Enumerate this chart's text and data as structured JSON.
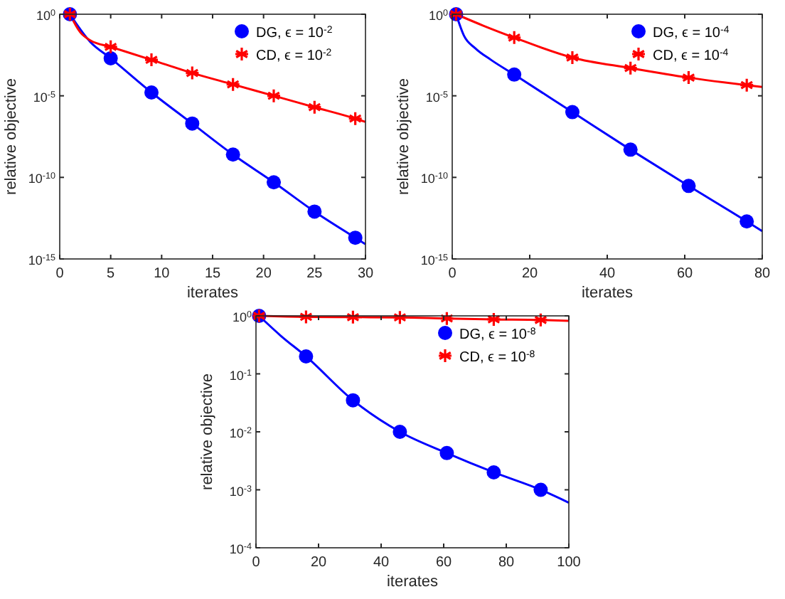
{
  "chart_data": [
    {
      "type": "line",
      "xlabel": "iterates",
      "ylabel": "relative objective",
      "log": "y",
      "xlim": [
        0,
        30
      ],
      "xticks": [
        0,
        5,
        10,
        15,
        20,
        25,
        30
      ],
      "ylim": [
        1e-15,
        1
      ],
      "yticks": [
        {
          "value": 1e-15,
          "label": "10$^{-15}$"
        },
        {
          "value": 1e-10,
          "label": "10$^{-10}$"
        },
        {
          "value": 1e-05,
          "label": "10$^{-5}$"
        },
        {
          "value": 1,
          "label": "10$^{0}$"
        }
      ],
      "legend": "top right",
      "series": [
        {
          "color": "#0000ff",
          "x": [
            1,
            3,
            5,
            9,
            13,
            17,
            21,
            25,
            29,
            30
          ],
          "values": [
            1,
            0.02,
            0.002,
            1.6e-05,
            2e-07,
            2.5e-09,
            5e-11,
            8e-13,
            2e-14,
            8e-15
          ]
        },
        {
          "color": "#ff0000",
          "x": [
            1,
            2,
            3,
            5,
            9,
            13,
            17,
            21,
            25,
            29,
            30
          ],
          "values": [
            1,
            0.08,
            0.025,
            0.01,
            0.0016,
            0.00025,
            5e-05,
            1e-05,
            2e-06,
            4e-07,
            2.5e-07
          ]
        },
        {
          "type": "scatter",
          "name": "DG, ϵ = 10$^{-2}$",
          "color": "#0000ff",
          "marker": "circle",
          "x": [
            1,
            5,
            9,
            13,
            17,
            21,
            25,
            29
          ],
          "values": [
            1,
            0.002,
            1.6e-05,
            2e-07,
            2.5e-09,
            5e-11,
            8e-13,
            2e-14
          ]
        },
        {
          "type": "scatter",
          "name": "CD, ϵ = 10$^{-2}$",
          "color": "#ff0000",
          "marker": "cross",
          "x": [
            1,
            5,
            9,
            13,
            17,
            21,
            25,
            29
          ],
          "values": [
            1,
            0.01,
            0.0016,
            0.00025,
            5e-05,
            1e-05,
            2e-06,
            4e-07
          ]
        }
      ]
    },
    {
      "type": "line",
      "xlabel": "iterates",
      "ylabel": "relative objective",
      "log": "y",
      "xlim": [
        0,
        80
      ],
      "xticks": [
        0,
        20,
        40,
        60,
        80
      ],
      "ylim": [
        1e-15,
        1
      ],
      "yticks": [
        {
          "value": 1e-15,
          "label": "10$^{-15}$"
        },
        {
          "value": 1e-10,
          "label": "10$^{-10}$"
        },
        {
          "value": 1e-05,
          "label": "10$^{-5}$"
        },
        {
          "value": 1,
          "label": "10$^{0}$"
        }
      ],
      "legend": "top right",
      "series": [
        {
          "color": "#0000ff",
          "x": [
            1,
            3,
            6,
            10,
            16,
            31,
            46,
            61,
            76,
            80
          ],
          "values": [
            1,
            0.05,
            0.008,
            0.0016,
            0.0002,
            1e-06,
            5e-09,
            3e-11,
            2e-13,
            5e-14
          ]
        },
        {
          "color": "#ff0000",
          "x": [
            1,
            8,
            16,
            31,
            46,
            61,
            76,
            80
          ],
          "values": [
            1,
            0.2,
            0.037,
            0.0022,
            0.0005,
            0.00013,
            4.5e-05,
            3.5e-05
          ]
        },
        {
          "type": "scatter",
          "name": "DG, ϵ = 10$^{-4}$",
          "color": "#0000ff",
          "marker": "circle",
          "x": [
            1,
            16,
            31,
            46,
            61,
            76
          ],
          "values": [
            1,
            0.0002,
            1e-06,
            5e-09,
            3e-11,
            2e-13
          ]
        },
        {
          "type": "scatter",
          "name": "CD, ϵ = 10$^{-4}$",
          "color": "#ff0000",
          "marker": "cross",
          "x": [
            1,
            16,
            31,
            46,
            61,
            76
          ],
          "values": [
            1,
            0.037,
            0.0022,
            0.0005,
            0.00013,
            4.5e-05
          ]
        }
      ]
    },
    {
      "type": "line",
      "xlabel": "iterates",
      "ylabel": "relative objective",
      "log": "y",
      "xlim": [
        0,
        100
      ],
      "xticks": [
        0,
        20,
        40,
        60,
        80,
        100
      ],
      "ylim": [
        0.0001,
        1
      ],
      "yticks": [
        {
          "value": 0.0001,
          "label": "10$^{-4}$"
        },
        {
          "value": 0.001,
          "label": "10$^{-3}$"
        },
        {
          "value": 0.01,
          "label": "10$^{-2}$"
        },
        {
          "value": 0.1,
          "label": "10$^{-1}$"
        },
        {
          "value": 1,
          "label": "10$^{0}$"
        }
      ],
      "legend": "top right",
      "series": [
        {
          "color": "#0000ff",
          "x": [
            1,
            8,
            16,
            31,
            46,
            61,
            76,
            91,
            100
          ],
          "values": [
            1,
            0.45,
            0.2,
            0.035,
            0.01,
            0.0043,
            0.002,
            0.001,
            0.0006
          ]
        },
        {
          "color": "#ff0000",
          "x": [
            1,
            16,
            31,
            46,
            61,
            76,
            91,
            100
          ],
          "values": [
            1,
            0.96,
            0.95,
            0.94,
            0.9,
            0.87,
            0.85,
            0.82
          ]
        },
        {
          "type": "scatter",
          "name": "DG, ϵ = 10$^{-8}$",
          "color": "#0000ff",
          "marker": "circle",
          "x": [
            1,
            16,
            31,
            46,
            61,
            76,
            91
          ],
          "values": [
            1,
            0.2,
            0.035,
            0.01,
            0.0043,
            0.002,
            0.001
          ]
        },
        {
          "type": "scatter",
          "name": "CD, ϵ = 10$^{-8}$",
          "color": "#ff0000",
          "marker": "cross",
          "x": [
            1,
            16,
            31,
            46,
            61,
            76,
            91
          ],
          "values": [
            1,
            0.96,
            0.95,
            0.94,
            0.9,
            0.87,
            0.85
          ]
        }
      ]
    }
  ]
}
